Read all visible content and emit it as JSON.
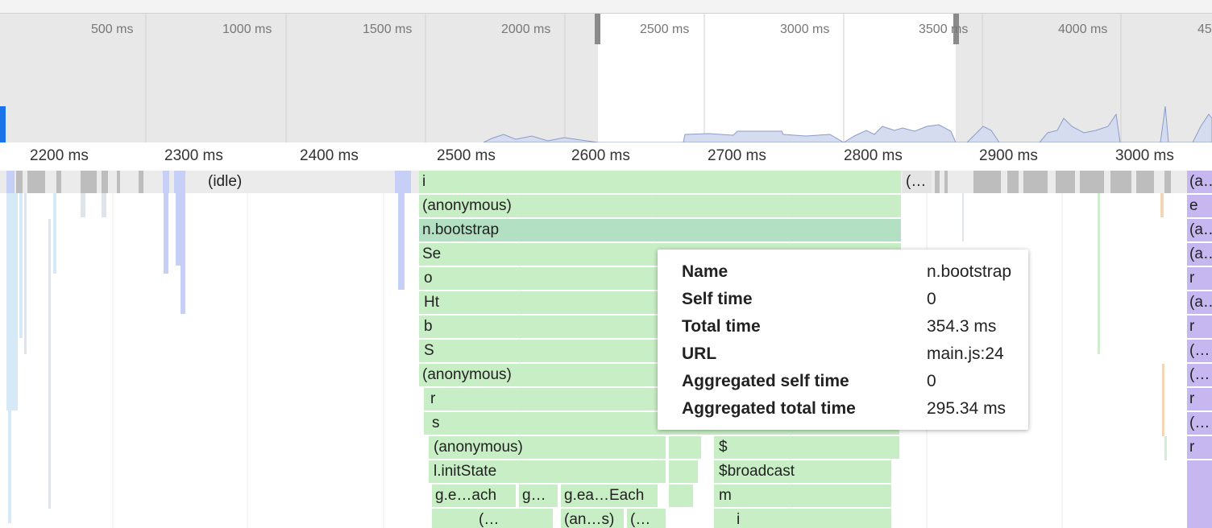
{
  "overview": {
    "ticks": [
      "500 ms",
      "1000 ms",
      "1500 ms",
      "2000 ms",
      "2500 ms",
      "3000 ms",
      "3500 ms",
      "4000 ms",
      "45"
    ]
  },
  "ruler": {
    "ticks": [
      "2200 ms",
      "2300 ms",
      "2400 ms",
      "2500 ms",
      "2600 ms",
      "2700 ms",
      "2800 ms",
      "2900 ms",
      "3000 ms"
    ]
  },
  "flame": {
    "idle_label": "(idle)",
    "root_frame": "i",
    "root_right_frame": "(…",
    "stack": [
      "(anonymous)",
      "n.bootstrap",
      "Se",
      "o",
      "Ht",
      "b",
      "S",
      "(anonymous)",
      "r",
      "s",
      "(anonymous)",
      "l.initState"
    ],
    "row13": [
      "g.e…ach",
      "g…",
      "g.ea…Each"
    ],
    "row14": [
      "(…",
      "(an…s)",
      "(…"
    ],
    "mid_stack": [
      "$",
      "$broadcast",
      "m",
      "i"
    ],
    "right_stack": [
      "(a…",
      "e",
      "(a…",
      "(a…",
      "r",
      "(a…",
      "r",
      "(…",
      "(…",
      "r",
      "(…",
      "r"
    ]
  },
  "tooltip": {
    "name_key": "Name",
    "name_val": "n.bootstrap",
    "self_key": "Self time",
    "self_val": "0",
    "total_key": "Total time",
    "total_val": "354.3 ms",
    "url_key": "URL",
    "url_val": "main.js:24",
    "agg_self_key": "Aggregated self time",
    "agg_self_val": "0",
    "agg_total_key": "Aggregated total time",
    "agg_total_val": "295.34 ms"
  },
  "colors": {
    "js_green": "#c7eec5",
    "idle_gray": "#e0e0e0",
    "purple": "#c7b7f0",
    "accent_blue": "#1a73e8"
  }
}
